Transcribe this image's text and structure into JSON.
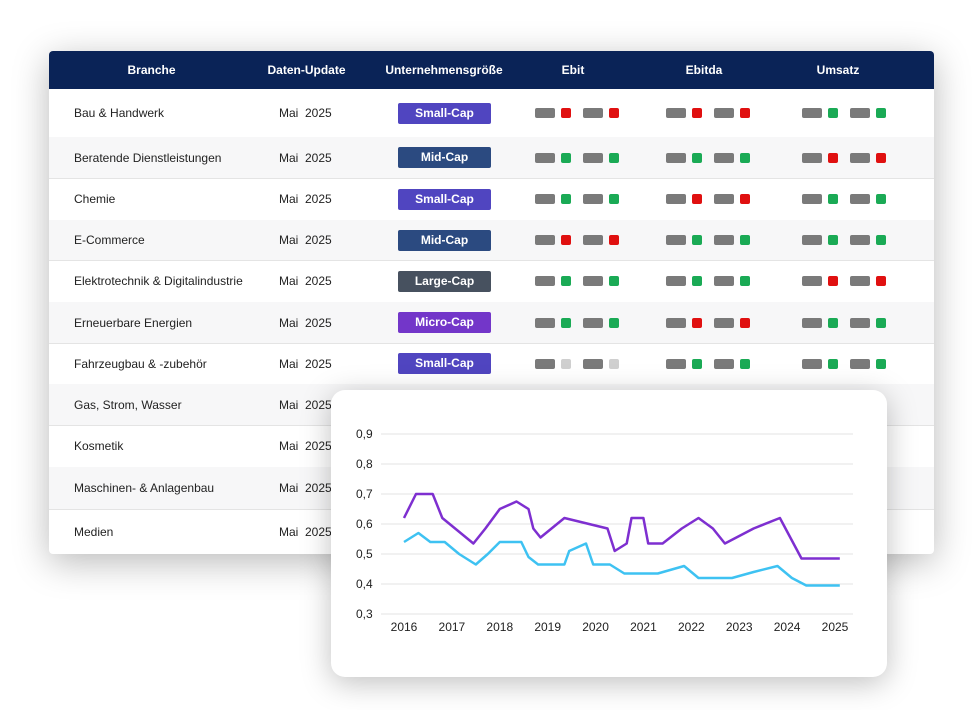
{
  "colors": {
    "header_bg": "#0a2357",
    "neutral": "#7a7a7a",
    "green": "#1aaa55",
    "red": "#e01010",
    "light": "#cfcfcf",
    "small_cap": "#5045c0",
    "mid_cap": "#2b4a80",
    "large_cap": "#47515f",
    "micro_cap": "#7336c9",
    "series_purple": "#7e2fd0",
    "series_cyan": "#3ec2f2"
  },
  "table": {
    "headers": {
      "branche": "Branche",
      "update": "Daten-Update",
      "size": "Unternehmensgröße",
      "ebit": "Ebit",
      "ebitda": "Ebitda",
      "umsatz": "Umsatz"
    },
    "rows": [
      {
        "name": "Bau & Handwerk",
        "date": "Mai  2025",
        "size": "Small-Cap",
        "size_kind": "small_cap",
        "ebit": [
          "red",
          "red"
        ],
        "ebitda": [
          "red",
          "red"
        ],
        "umsatz": [
          "green",
          "green"
        ]
      },
      {
        "name": "Beratende Dienstleistungen",
        "date": "Mai  2025",
        "size": "Mid-Cap",
        "size_kind": "mid_cap",
        "ebit": [
          "green",
          "green"
        ],
        "ebitda": [
          "green",
          "green"
        ],
        "umsatz": [
          "red",
          "red"
        ]
      },
      {
        "name": "Chemie",
        "date": "Mai  2025",
        "size": "Small-Cap",
        "size_kind": "small_cap",
        "ebit": [
          "green",
          "green"
        ],
        "ebitda": [
          "red",
          "red"
        ],
        "umsatz": [
          "green",
          "green"
        ]
      },
      {
        "name": "E-Commerce",
        "date": "Mai  2025",
        "size": "Mid-Cap",
        "size_kind": "mid_cap",
        "ebit": [
          "red",
          "red"
        ],
        "ebitda": [
          "green",
          "green"
        ],
        "umsatz": [
          "green",
          "green"
        ]
      },
      {
        "name": "Elektrotechnik & Digitalindustrie",
        "date": "Mai  2025",
        "size": "Large-Cap",
        "size_kind": "large_cap",
        "ebit": [
          "green",
          "green"
        ],
        "ebitda": [
          "green",
          "green"
        ],
        "umsatz": [
          "red",
          "red"
        ]
      },
      {
        "name": "Erneuerbare Energien",
        "date": "Mai  2025",
        "size": "Micro-Cap",
        "size_kind": "micro_cap",
        "ebit": [
          "green",
          "green"
        ],
        "ebitda": [
          "red",
          "red"
        ],
        "umsatz": [
          "green",
          "green"
        ]
      },
      {
        "name": "Fahrzeugbau & -zubehör",
        "date": "Mai  2025",
        "size": "Small-Cap",
        "size_kind": "small_cap",
        "ebit": [
          "light",
          "light"
        ],
        "ebitda": [
          "green",
          "green"
        ],
        "umsatz": [
          "green",
          "green"
        ]
      },
      {
        "name": "Gas, Strom, Wasser",
        "date": "Mai  2025"
      },
      {
        "name": "Kosmetik",
        "date": "Mai  2025"
      },
      {
        "name": "Maschinen- & Anlagenbau",
        "date": "Mai  2025"
      },
      {
        "name": "Medien",
        "date": "Mai  2025"
      }
    ]
  },
  "chart_data": {
    "type": "line",
    "title": "",
    "xlabel": "",
    "ylabel": "",
    "xlim": [
      2016,
      2025
    ],
    "ylim": [
      0.3,
      0.9
    ],
    "x_ticks": [
      2016,
      2017,
      2018,
      2019,
      2020,
      2021,
      2022,
      2023,
      2024,
      2025
    ],
    "y_ticks": [
      0.3,
      0.4,
      0.5,
      0.6,
      0.7,
      0.8,
      0.9
    ],
    "y_tick_labels": [
      "0,3",
      "0,4",
      "0,5",
      "0,6",
      "0,7",
      "0,8",
      "0,9"
    ],
    "grid": true,
    "series": [
      {
        "color": "purple",
        "points": [
          [
            2016,
            0.62
          ],
          [
            2016.25,
            0.7
          ],
          [
            2016.6,
            0.7
          ],
          [
            2016.8,
            0.62
          ],
          [
            2017.45,
            0.535
          ],
          [
            2017.7,
            0.585
          ],
          [
            2018,
            0.65
          ],
          [
            2018.35,
            0.675
          ],
          [
            2018.6,
            0.65
          ],
          [
            2018.7,
            0.585
          ],
          [
            2018.85,
            0.555
          ],
          [
            2019.35,
            0.62
          ],
          [
            2020.25,
            0.585
          ],
          [
            2020.4,
            0.51
          ],
          [
            2020.65,
            0.535
          ],
          [
            2020.75,
            0.62
          ],
          [
            2021.0,
            0.62
          ],
          [
            2021.1,
            0.535
          ],
          [
            2021.4,
            0.535
          ],
          [
            2021.8,
            0.585
          ],
          [
            2022.15,
            0.62
          ],
          [
            2022.45,
            0.585
          ],
          [
            2022.7,
            0.535
          ],
          [
            2023.3,
            0.585
          ],
          [
            2023.85,
            0.62
          ],
          [
            2024.3,
            0.485
          ],
          [
            2025.1,
            0.485
          ]
        ]
      },
      {
        "color": "cyan",
        "points": [
          [
            2016,
            0.54
          ],
          [
            2016.3,
            0.57
          ],
          [
            2016.55,
            0.54
          ],
          [
            2016.85,
            0.54
          ],
          [
            2017.15,
            0.5
          ],
          [
            2017.5,
            0.465
          ],
          [
            2017.75,
            0.5
          ],
          [
            2018,
            0.54
          ],
          [
            2018.45,
            0.54
          ],
          [
            2018.6,
            0.49
          ],
          [
            2018.8,
            0.465
          ],
          [
            2019.35,
            0.465
          ],
          [
            2019.45,
            0.51
          ],
          [
            2019.8,
            0.535
          ],
          [
            2019.95,
            0.465
          ],
          [
            2020.3,
            0.465
          ],
          [
            2020.6,
            0.435
          ],
          [
            2021.3,
            0.435
          ],
          [
            2021.85,
            0.46
          ],
          [
            2022.15,
            0.42
          ],
          [
            2022.85,
            0.42
          ],
          [
            2023.3,
            0.44
          ],
          [
            2023.8,
            0.46
          ],
          [
            2024.1,
            0.42
          ],
          [
            2024.4,
            0.395
          ],
          [
            2025.1,
            0.395
          ]
        ]
      }
    ]
  }
}
